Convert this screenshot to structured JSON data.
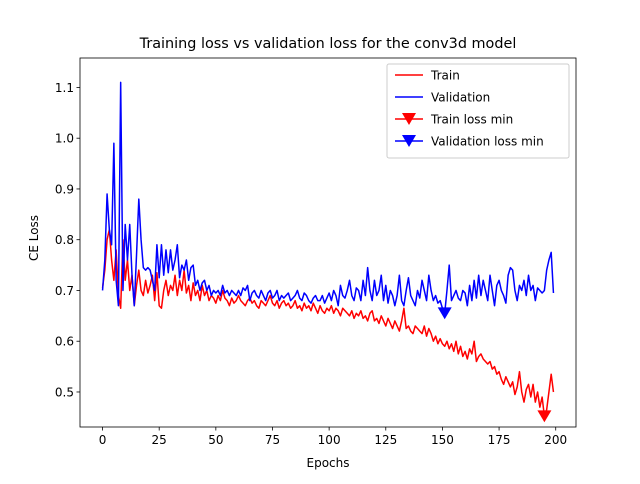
{
  "chart_data": {
    "type": "line",
    "title": "Training loss vs validation loss for the conv3d model",
    "xlabel": "Epochs",
    "ylabel": "CE Loss",
    "x": [
      0,
      1,
      2,
      3,
      4,
      5,
      6,
      7,
      8,
      9,
      10,
      11,
      12,
      13,
      14,
      15,
      16,
      17,
      18,
      19,
      20,
      21,
      22,
      23,
      24,
      25,
      26,
      27,
      28,
      29,
      30,
      31,
      32,
      33,
      34,
      35,
      36,
      37,
      38,
      39,
      40,
      41,
      42,
      43,
      44,
      45,
      46,
      47,
      48,
      49,
      50,
      51,
      52,
      53,
      54,
      55,
      56,
      57,
      58,
      59,
      60,
      61,
      62,
      63,
      64,
      65,
      66,
      67,
      68,
      69,
      70,
      71,
      72,
      73,
      74,
      75,
      76,
      77,
      78,
      79,
      80,
      81,
      82,
      83,
      84,
      85,
      86,
      87,
      88,
      89,
      90,
      91,
      92,
      93,
      94,
      95,
      96,
      97,
      98,
      99,
      100,
      101,
      102,
      103,
      104,
      105,
      106,
      107,
      108,
      109,
      110,
      111,
      112,
      113,
      114,
      115,
      116,
      117,
      118,
      119,
      120,
      121,
      122,
      123,
      124,
      125,
      126,
      127,
      128,
      129,
      130,
      131,
      132,
      133,
      134,
      135,
      136,
      137,
      138,
      139,
      140,
      141,
      142,
      143,
      144,
      145,
      146,
      147,
      148,
      149,
      150,
      151,
      152,
      153,
      154,
      155,
      156,
      157,
      158,
      159,
      160,
      161,
      162,
      163,
      164,
      165,
      166,
      167,
      168,
      169,
      170,
      171,
      172,
      173,
      174,
      175,
      176,
      177,
      178,
      179,
      180,
      181,
      182,
      183,
      184,
      185,
      186,
      187,
      188,
      189,
      190,
      191,
      192,
      193,
      194,
      195,
      196,
      197,
      198,
      199
    ],
    "series": [
      {
        "name": "Train",
        "color": "#ff0000",
        "values": [
          0.705,
          0.74,
          0.8,
          0.82,
          0.76,
          0.72,
          0.78,
          0.69,
          0.665,
          0.8,
          0.72,
          0.76,
          0.7,
          0.73,
          0.67,
          0.71,
          0.74,
          0.7,
          0.69,
          0.72,
          0.695,
          0.71,
          0.73,
          0.68,
          0.735,
          0.67,
          0.665,
          0.7,
          0.72,
          0.69,
          0.71,
          0.7,
          0.73,
          0.69,
          0.72,
          0.7,
          0.74,
          0.695,
          0.71,
          0.68,
          0.715,
          0.69,
          0.7,
          0.68,
          0.71,
          0.69,
          0.7,
          0.68,
          0.69,
          0.685,
          0.675,
          0.69,
          0.68,
          0.7,
          0.685,
          0.68,
          0.67,
          0.685,
          0.675,
          0.68,
          0.69,
          0.68,
          0.675,
          0.67,
          0.68,
          0.685,
          0.675,
          0.68,
          0.67,
          0.665,
          0.68,
          0.675,
          0.67,
          0.68,
          0.69,
          0.675,
          0.67,
          0.68,
          0.665,
          0.675,
          0.68,
          0.67,
          0.675,
          0.665,
          0.67,
          0.68,
          0.665,
          0.67,
          0.66,
          0.675,
          0.665,
          0.67,
          0.66,
          0.675,
          0.665,
          0.655,
          0.67,
          0.66,
          0.655,
          0.665,
          0.66,
          0.67,
          0.655,
          0.665,
          0.66,
          0.65,
          0.665,
          0.66,
          0.655,
          0.65,
          0.66,
          0.645,
          0.655,
          0.65,
          0.66,
          0.645,
          0.65,
          0.64,
          0.655,
          0.66,
          0.64,
          0.645,
          0.635,
          0.65,
          0.64,
          0.63,
          0.645,
          0.635,
          0.625,
          0.64,
          0.63,
          0.62,
          0.64,
          0.665,
          0.625,
          0.63,
          0.62,
          0.615,
          0.63,
          0.625,
          0.62,
          0.615,
          0.63,
          0.61,
          0.625,
          0.615,
          0.6,
          0.61,
          0.595,
          0.605,
          0.595,
          0.59,
          0.6,
          0.585,
          0.595,
          0.58,
          0.6,
          0.575,
          0.59,
          0.57,
          0.58,
          0.565,
          0.585,
          0.575,
          0.6,
          0.56,
          0.57,
          0.575,
          0.565,
          0.56,
          0.555,
          0.56,
          0.545,
          0.55,
          0.535,
          0.54,
          0.525,
          0.515,
          0.53,
          0.52,
          0.51,
          0.52,
          0.495,
          0.51,
          0.54,
          0.5,
          0.48,
          0.505,
          0.515,
          0.49,
          0.515,
          0.48,
          0.5,
          0.47,
          0.49,
          0.452,
          0.465,
          0.5,
          0.535,
          0.5
        ]
      },
      {
        "name": "Validation",
        "color": "#0000ff",
        "values": [
          0.7,
          0.76,
          0.89,
          0.82,
          0.79,
          0.99,
          0.72,
          0.67,
          1.11,
          0.7,
          0.83,
          0.76,
          0.83,
          0.73,
          0.67,
          0.77,
          0.88,
          0.8,
          0.745,
          0.74,
          0.745,
          0.74,
          0.72,
          0.7,
          0.79,
          0.725,
          0.79,
          0.73,
          0.78,
          0.735,
          0.78,
          0.74,
          0.76,
          0.79,
          0.725,
          0.75,
          0.74,
          0.76,
          0.72,
          0.745,
          0.75,
          0.71,
          0.72,
          0.7,
          0.715,
          0.72,
          0.7,
          0.71,
          0.69,
          0.7,
          0.695,
          0.7,
          0.69,
          0.71,
          0.695,
          0.7,
          0.69,
          0.7,
          0.695,
          0.69,
          0.7,
          0.69,
          0.705,
          0.7,
          0.71,
          0.68,
          0.695,
          0.7,
          0.69,
          0.685,
          0.7,
          0.69,
          0.68,
          0.695,
          0.7,
          0.685,
          0.69,
          0.7,
          0.68,
          0.69,
          0.685,
          0.69,
          0.695,
          0.68,
          0.685,
          0.69,
          0.7,
          0.685,
          0.68,
          0.695,
          0.69,
          0.68,
          0.675,
          0.685,
          0.69,
          0.68,
          0.68,
          0.69,
          0.675,
          0.685,
          0.695,
          0.68,
          0.7,
          0.69,
          0.67,
          0.71,
          0.69,
          0.685,
          0.7,
          0.72,
          0.69,
          0.68,
          0.705,
          0.7,
          0.68,
          0.72,
          0.69,
          0.745,
          0.7,
          0.68,
          0.72,
          0.69,
          0.7,
          0.73,
          0.68,
          0.71,
          0.675,
          0.7,
          0.69,
          0.67,
          0.69,
          0.73,
          0.68,
          0.67,
          0.7,
          0.725,
          0.69,
          0.68,
          0.67,
          0.7,
          0.685,
          0.72,
          0.7,
          0.68,
          0.73,
          0.7,
          0.68,
          0.69,
          0.675,
          0.68,
          0.665,
          0.655,
          0.7,
          0.75,
          0.68,
          0.69,
          0.7,
          0.685,
          0.68,
          0.7,
          0.695,
          0.67,
          0.71,
          0.68,
          0.72,
          0.685,
          0.73,
          0.69,
          0.72,
          0.7,
          0.68,
          0.73,
          0.7,
          0.67,
          0.71,
          0.72,
          0.7,
          0.69,
          0.675,
          0.73,
          0.745,
          0.74,
          0.7,
          0.68,
          0.71,
          0.7,
          0.72,
          0.69,
          0.73,
          0.7,
          0.71,
          0.68,
          0.705,
          0.7,
          0.695,
          0.7,
          0.74,
          0.76,
          0.775,
          0.695
        ]
      },
      {
        "name": "Train loss min",
        "color": "#ff0000",
        "marker": "v",
        "x": [
          195
        ],
        "values": [
          0.452
        ]
      },
      {
        "name": "Validation loss min",
        "color": "#0000ff",
        "marker": "v",
        "x": [
          151
        ],
        "values": [
          0.655
        ]
      }
    ],
    "xlim": [
      -9.95,
      208.95
    ],
    "ylim": [
      0.431,
      1.158
    ],
    "xticks": [
      0,
      25,
      50,
      75,
      100,
      125,
      150,
      175,
      200
    ],
    "yticks": [
      0.5,
      0.6,
      0.7,
      0.8,
      0.9,
      {
        "value": 1,
        "label": "1.0"
      },
      1.1
    ],
    "legend": "upper right"
  }
}
